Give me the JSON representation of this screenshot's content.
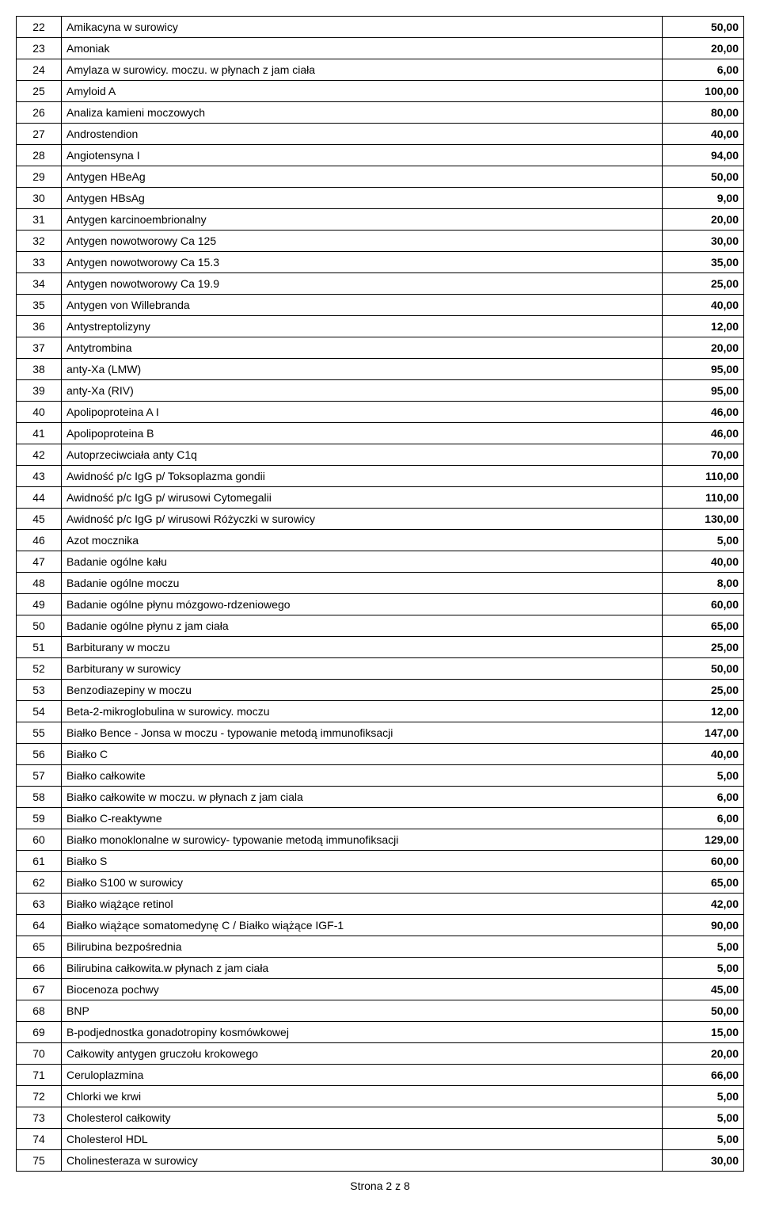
{
  "table": {
    "columns": {
      "num_width": 44,
      "price_width": 90,
      "num_align": "center",
      "desc_align": "left",
      "price_align": "right"
    },
    "border_color": "#000000",
    "background_color": "#ffffff",
    "font_size": 14,
    "price_font_weight": "bold",
    "rows": [
      {
        "n": "22",
        "desc": "Amikacyna w surowicy",
        "price": "50,00"
      },
      {
        "n": "23",
        "desc": "Amoniak",
        "price": "20,00"
      },
      {
        "n": "24",
        "desc": "Amylaza w surowicy. moczu. w płynach z jam ciała",
        "price": "6,00"
      },
      {
        "n": "25",
        "desc": "Amyloid A",
        "price": "100,00"
      },
      {
        "n": "26",
        "desc": "Analiza kamieni moczowych",
        "price": "80,00"
      },
      {
        "n": "27",
        "desc": "Androstendion",
        "price": "40,00"
      },
      {
        "n": "28",
        "desc": "Angiotensyna I",
        "price": "94,00"
      },
      {
        "n": "29",
        "desc": "Antygen HBeAg",
        "price": "50,00"
      },
      {
        "n": "30",
        "desc": "Antygen HBsAg",
        "price": "9,00"
      },
      {
        "n": "31",
        "desc": "Antygen karcinoembrionalny",
        "price": "20,00"
      },
      {
        "n": "32",
        "desc": "Antygen nowotworowy Ca 125",
        "price": "30,00"
      },
      {
        "n": "33",
        "desc": "Antygen nowotworowy Ca 15.3",
        "price": "35,00"
      },
      {
        "n": "34",
        "desc": "Antygen nowotworowy Ca 19.9",
        "price": "25,00"
      },
      {
        "n": "35",
        "desc": "Antygen von Willebranda",
        "price": "40,00"
      },
      {
        "n": "36",
        "desc": "Antystreptolizyny",
        "price": "12,00"
      },
      {
        "n": "37",
        "desc": "Antytrombina",
        "price": "20,00"
      },
      {
        "n": "38",
        "desc": "anty-Xa (LMW)",
        "price": "95,00"
      },
      {
        "n": "39",
        "desc": "anty-Xa (RIV)",
        "price": "95,00"
      },
      {
        "n": "40",
        "desc": "Apolipoproteina A I",
        "price": "46,00"
      },
      {
        "n": "41",
        "desc": "Apolipoproteina B",
        "price": "46,00"
      },
      {
        "n": "42",
        "desc": "Autoprzeciwciała anty C1q",
        "price": "70,00"
      },
      {
        "n": "43",
        "desc": "Awidność p/c IgG p/ Toksoplazma gondii",
        "price": "110,00"
      },
      {
        "n": "44",
        "desc": "Awidność p/c IgG p/ wirusowi Cytomegalii",
        "price": "110,00"
      },
      {
        "n": "45",
        "desc": "Awidność p/c IgG p/ wirusowi Różyczki w surowicy",
        "price": "130,00"
      },
      {
        "n": "46",
        "desc": "Azot mocznika",
        "price": "5,00"
      },
      {
        "n": "47",
        "desc": "Badanie ogólne kału",
        "price": "40,00"
      },
      {
        "n": "48",
        "desc": "Badanie ogólne moczu",
        "price": "8,00"
      },
      {
        "n": "49",
        "desc": "Badanie ogólne płynu mózgowo-rdzeniowego",
        "price": "60,00"
      },
      {
        "n": "50",
        "desc": "Badanie ogólne płynu z jam ciała",
        "price": "65,00"
      },
      {
        "n": "51",
        "desc": "Barbiturany w moczu",
        "price": "25,00"
      },
      {
        "n": "52",
        "desc": "Barbiturany w surowicy",
        "price": "50,00"
      },
      {
        "n": "53",
        "desc": "Benzodiazepiny w moczu",
        "price": "25,00"
      },
      {
        "n": "54",
        "desc": "Beta-2-mikroglobulina w surowicy. moczu",
        "price": "12,00"
      },
      {
        "n": "55",
        "desc": "Białko Bence - Jonsa w moczu - typowanie metodą immunofiksacji",
        "price": "147,00"
      },
      {
        "n": "56",
        "desc": "Białko C",
        "price": "40,00"
      },
      {
        "n": "57",
        "desc": "Białko całkowite",
        "price": "5,00"
      },
      {
        "n": "58",
        "desc": "Białko całkowite w moczu. w płynach z jam ciala",
        "price": "6,00"
      },
      {
        "n": "59",
        "desc": "Białko C-reaktywne",
        "price": "6,00"
      },
      {
        "n": "60",
        "desc": "Białko monoklonalne w surowicy- typowanie metodą immunofiksacji",
        "price": "129,00"
      },
      {
        "n": "61",
        "desc": "Białko S",
        "price": "60,00"
      },
      {
        "n": "62",
        "desc": "Białko S100 w surowicy",
        "price": "65,00"
      },
      {
        "n": "63",
        "desc": "Białko wiążące retinol",
        "price": "42,00"
      },
      {
        "n": "64",
        "desc": "Białko wiążące somatomedynę C / Białko wiążące IGF-1",
        "price": "90,00"
      },
      {
        "n": "65",
        "desc": "Bilirubina bezpośrednia",
        "price": "5,00"
      },
      {
        "n": "66",
        "desc": "Bilirubina całkowita.w płynach z jam ciała",
        "price": "5,00"
      },
      {
        "n": "67",
        "desc": "Biocenoza pochwy",
        "price": "45,00"
      },
      {
        "n": "68",
        "desc": "BNP",
        "price": "50,00"
      },
      {
        "n": "69",
        "desc": "B-podjednostka gonadotropiny kosmówkowej",
        "price": "15,00"
      },
      {
        "n": "70",
        "desc": "Całkowity antygen gruczołu krokowego",
        "price": "20,00"
      },
      {
        "n": "71",
        "desc": "Ceruloplazmina",
        "price": "66,00"
      },
      {
        "n": "72",
        "desc": "Chlorki we krwi",
        "price": "5,00"
      },
      {
        "n": "73",
        "desc": "Cholesterol całkowity",
        "price": "5,00"
      },
      {
        "n": "74",
        "desc": "Cholesterol HDL",
        "price": "5,00"
      },
      {
        "n": "75",
        "desc": "Cholinesteraza w surowicy",
        "price": "30,00"
      }
    ]
  },
  "page_label": "Strona 2 z 8"
}
